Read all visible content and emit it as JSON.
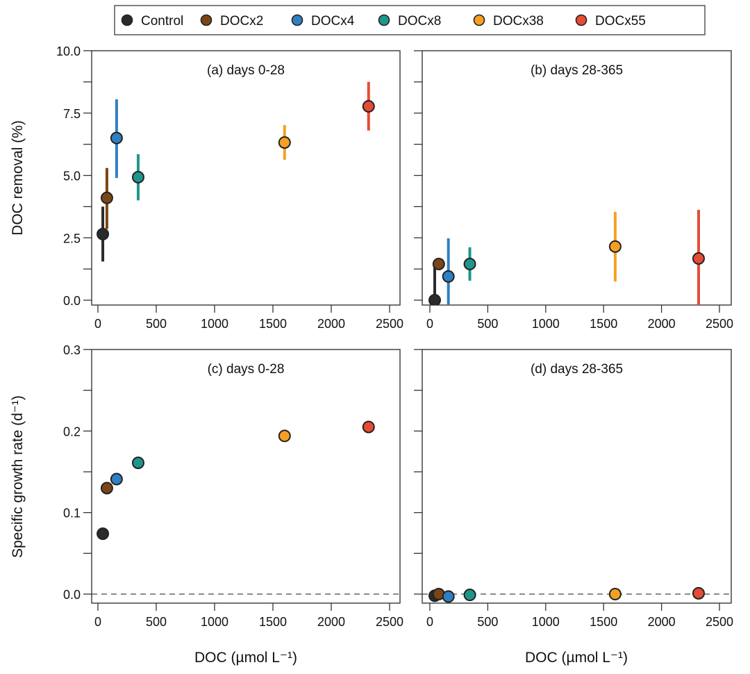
{
  "figure": {
    "legend": {
      "placement": "top-center",
      "entries": [
        {
          "name": "Control",
          "color": "#2b2b2b"
        },
        {
          "name": "DOCx2",
          "color": "#7a4617"
        },
        {
          "name": "DOCx4",
          "color": "#2f7fc1"
        },
        {
          "name": "DOCx8",
          "color": "#1f968b"
        },
        {
          "name": "DOCx38",
          "color": "#f5a023"
        },
        {
          "name": "DOCx55",
          "color": "#e64b35"
        }
      ]
    },
    "shared_xlabel": "DOC (µmol L⁻¹)",
    "top_ylabel": "DOC removal (%)",
    "bottom_ylabel": "Specific growth rate (d⁻¹)"
  },
  "chart_data": [
    {
      "id": "a",
      "type": "scatter",
      "title": "(a) days 0-28",
      "xlabel": "",
      "ylabel": "DOC removal (%)",
      "xlim": [
        0,
        2500
      ],
      "ylim": [
        0,
        10
      ],
      "xticks": [
        0,
        500,
        1000,
        1500,
        2000,
        2500
      ],
      "yticks": [
        0.0,
        2.5,
        5.0,
        7.5,
        10.0
      ],
      "ytick_labels": [
        "0.0",
        "2.5",
        "5.0",
        "7.5",
        "10.0"
      ],
      "show_ytick_labels": true,
      "zero_line": false,
      "series": [
        {
          "name": "Control",
          "x": 42,
          "y": 2.65,
          "err_low": 1.55,
          "err_high": 3.75
        },
        {
          "name": "DOCx2",
          "x": 77,
          "y": 4.1,
          "err_low": 2.85,
          "err_high": 5.3
        },
        {
          "name": "DOCx4",
          "x": 160,
          "y": 6.5,
          "err_low": 4.9,
          "err_high": 8.05
        },
        {
          "name": "DOCx8",
          "x": 345,
          "y": 4.93,
          "err_low": 4.0,
          "err_high": 5.85
        },
        {
          "name": "DOCx38",
          "x": 1600,
          "y": 6.32,
          "err_low": 5.63,
          "err_high": 7.02
        },
        {
          "name": "DOCx55",
          "x": 2320,
          "y": 7.77,
          "err_low": 6.8,
          "err_high": 8.75
        }
      ]
    },
    {
      "id": "b",
      "type": "scatter",
      "title": "(b) days 28-365",
      "xlabel": "",
      "ylabel": "",
      "xlim": [
        0,
        2500
      ],
      "ylim": [
        0,
        10
      ],
      "xticks": [
        0,
        500,
        1000,
        1500,
        2000,
        2500
      ],
      "yticks": [
        0.0,
        2.5,
        5.0,
        7.5,
        10.0
      ],
      "ytick_labels": [],
      "show_ytick_labels": false,
      "zero_line": false,
      "series": [
        {
          "name": "Control",
          "x": 42,
          "y": 0.0,
          "err_low": -1.4,
          "err_high": 1.4
        },
        {
          "name": "DOCx2",
          "x": 77,
          "y": 1.45,
          "err_low": 1.4,
          "err_high": 1.5
        },
        {
          "name": "DOCx4",
          "x": 160,
          "y": 0.95,
          "err_low": -0.6,
          "err_high": 2.48
        },
        {
          "name": "DOCx8",
          "x": 345,
          "y": 1.45,
          "err_low": 0.78,
          "err_high": 2.12
        },
        {
          "name": "DOCx38",
          "x": 1600,
          "y": 2.15,
          "err_low": 0.75,
          "err_high": 3.54
        },
        {
          "name": "DOCx55",
          "x": 2320,
          "y": 1.67,
          "err_low": -0.3,
          "err_high": 3.62
        }
      ]
    },
    {
      "id": "c",
      "type": "scatter",
      "title": "(c) days 0-28",
      "xlabel": "DOC (µmol L⁻¹)",
      "ylabel": "Specific growth rate (d⁻¹)",
      "xlim": [
        0,
        2500
      ],
      "ylim": [
        0,
        0.3
      ],
      "xticks": [
        0,
        500,
        1000,
        1500,
        2000,
        2500
      ],
      "yticks": [
        0.0,
        0.05,
        0.1,
        0.15,
        0.2,
        0.25,
        0.3
      ],
      "ytick_labels": [
        "0.0",
        "",
        "0.1",
        "",
        "0.2",
        "",
        "0.3"
      ],
      "show_ytick_labels": true,
      "zero_line": true,
      "series": [
        {
          "name": "Control",
          "x": 42,
          "y": 0.074,
          "err_low": 0.072,
          "err_high": 0.076
        },
        {
          "name": "DOCx2",
          "x": 77,
          "y": 0.13,
          "err_low": 0.128,
          "err_high": 0.132
        },
        {
          "name": "DOCx4",
          "x": 160,
          "y": 0.141,
          "err_low": 0.139,
          "err_high": 0.143
        },
        {
          "name": "DOCx8",
          "x": 345,
          "y": 0.161,
          "err_low": 0.16,
          "err_high": 0.162
        },
        {
          "name": "DOCx38",
          "x": 1600,
          "y": 0.194,
          "err_low": 0.194,
          "err_high": 0.194
        },
        {
          "name": "DOCx55",
          "x": 2320,
          "y": 0.205,
          "err_low": 0.205,
          "err_high": 0.205
        }
      ]
    },
    {
      "id": "d",
      "type": "scatter",
      "title": "(d) days 28-365",
      "xlabel": "DOC (µmol L⁻¹)",
      "ylabel": "",
      "xlim": [
        0,
        2500
      ],
      "ylim": [
        0,
        0.3
      ],
      "xticks": [
        0,
        500,
        1000,
        1500,
        2000,
        2500
      ],
      "yticks": [
        0.0,
        0.05,
        0.1,
        0.15,
        0.2,
        0.25,
        0.3
      ],
      "ytick_labels": [],
      "show_ytick_labels": false,
      "zero_line": true,
      "series": [
        {
          "name": "Control",
          "x": 42,
          "y": -0.002,
          "err_low": -0.002,
          "err_high": -0.002
        },
        {
          "name": "DOCx2",
          "x": 77,
          "y": 0.0,
          "err_low": 0.0,
          "err_high": 0.0
        },
        {
          "name": "DOCx4",
          "x": 160,
          "y": -0.003,
          "err_low": -0.003,
          "err_high": -0.003
        },
        {
          "name": "DOCx8",
          "x": 345,
          "y": -0.001,
          "err_low": -0.001,
          "err_high": -0.001
        },
        {
          "name": "DOCx38",
          "x": 1600,
          "y": 0.0,
          "err_low": 0.0,
          "err_high": 0.0
        },
        {
          "name": "DOCx55",
          "x": 2320,
          "y": 0.001,
          "err_low": 0.001,
          "err_high": 0.001
        }
      ]
    }
  ]
}
